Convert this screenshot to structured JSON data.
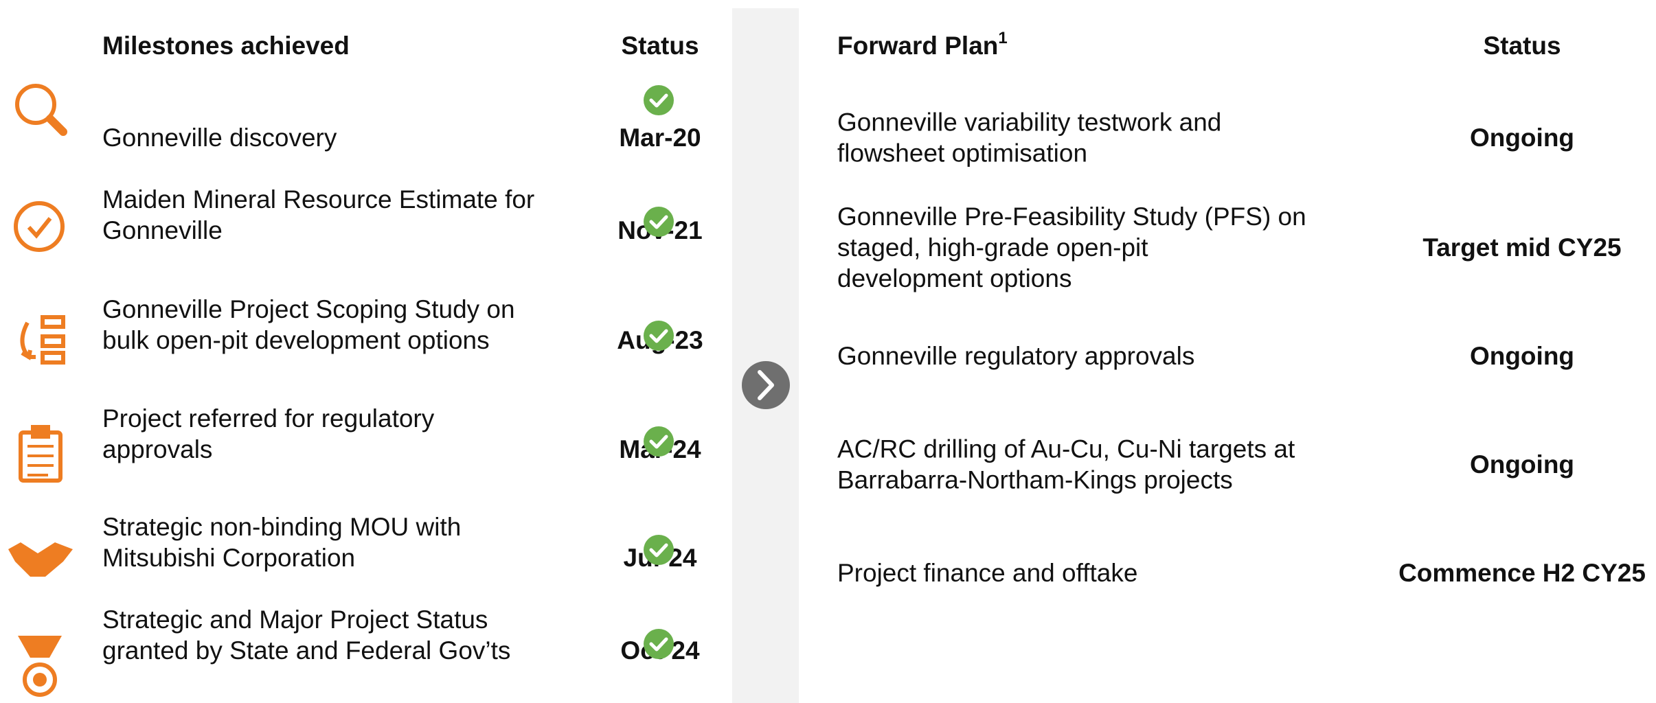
{
  "left": {
    "title": "Milestones achieved",
    "status_header": "Status",
    "rows": [
      {
        "lines": [
          "Gonneville discovery"
        ],
        "status": "Mar-20"
      },
      {
        "lines": [
          "Maiden Mineral Resource Estimate for",
          "Gonneville"
        ],
        "status": "Nov-21"
      },
      {
        "lines": [
          "Gonneville Project Scoping Study on",
          "bulk open-pit development options"
        ],
        "status": "Aug-23"
      },
      {
        "lines": [
          "Project referred for regulatory",
          "approvals"
        ],
        "status": "Mar-24"
      },
      {
        "lines": [
          "Strategic non-binding MOU with",
          "Mitsubishi Corporation"
        ],
        "status": "Jul-24"
      },
      {
        "lines": [
          "Strategic and Major Project Status",
          "granted by State and Federal Gov’ts"
        ],
        "status": "Oct-24"
      }
    ]
  },
  "right": {
    "title": "Forward Plan",
    "title_sup": "1",
    "status_header": "Status",
    "rows": [
      {
        "lines": [
          "Gonneville variability testwork and",
          "flowsheet optimisation"
        ],
        "status": "Ongoing"
      },
      {
        "lines": [
          "Gonneville Pre-Feasibility Study (PFS) on",
          "staged, high-grade open-pit",
          "development options"
        ],
        "status": "Target mid CY25"
      },
      {
        "lines": [
          "Gonneville regulatory approvals"
        ],
        "status": "Ongoing"
      },
      {
        "lines": [
          "AC/RC drilling of Au-Cu, Cu-Ni targets at",
          "Barrabarra-Northam-Kings projects"
        ],
        "status": "Ongoing"
      },
      {
        "lines": [
          "Project finance and offtake"
        ],
        "status": "Commence H2 CY25"
      }
    ]
  }
}
